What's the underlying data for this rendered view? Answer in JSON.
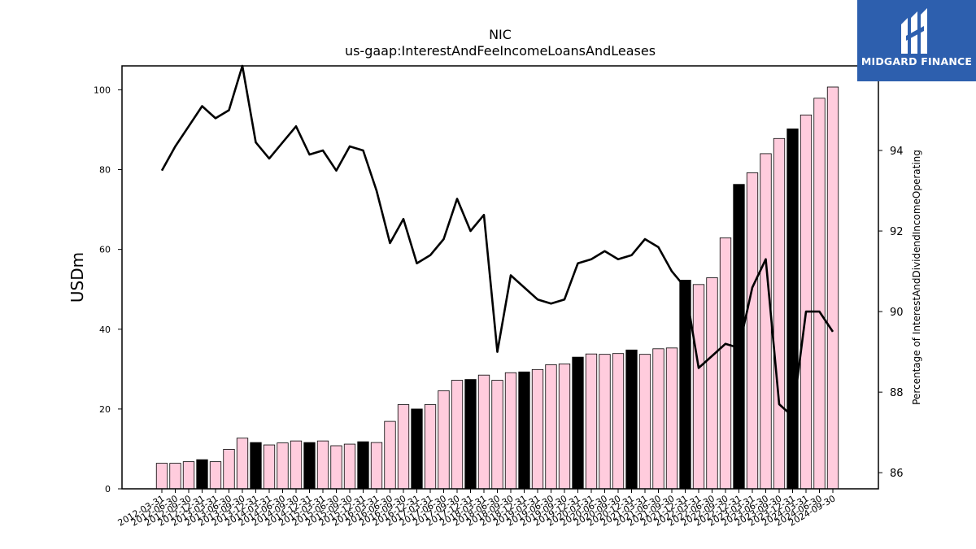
{
  "chart_data": {
    "type": "bar",
    "title": "NIC",
    "subtitle": "us-gaap:InterestAndFeeIncomeLoansAndLeases",
    "ylabel": "USDm",
    "y2label": "Percentage of InterestAndDividendIncomeOperating",
    "ylim": [
      0,
      106
    ],
    "y2lim": [
      85.6,
      96.1
    ],
    "yticks": [
      0,
      20,
      40,
      60,
      80,
      100
    ],
    "y2ticks": [
      86,
      88,
      90,
      92,
      94
    ],
    "categories": [
      "2012-03-31",
      "2012-06-30",
      "2012-09-30",
      "2012-12-31",
      "2013-03-31",
      "2013-06-30",
      "2013-09-30",
      "2013-12-31",
      "2014-03-31",
      "2014-06-30",
      "2014-09-30",
      "2014-12-31",
      "2015-03-31",
      "2015-06-30",
      "2015-09-30",
      "2015-12-31",
      "2016-03-31",
      "2016-06-30",
      "2016-09-30",
      "2016-12-31",
      "2017-03-31",
      "2017-06-30",
      "2017-09-30",
      "2017-12-31",
      "2018-03-31",
      "2018-06-30",
      "2018-09-30",
      "2018-12-31",
      "2019-03-31",
      "2019-06-30",
      "2019-09-30",
      "2019-12-31",
      "2020-03-31",
      "2020-06-30",
      "2020-09-30",
      "2020-12-31",
      "2021-03-31",
      "2021-06-30",
      "2021-09-30",
      "2021-12-31",
      "2022-03-31",
      "2022-06-30",
      "2022-09-30",
      "2022-12-31",
      "2023-03-31",
      "2023-06-30",
      "2023-09-30",
      "2023-12-31",
      "2024-03-31",
      "2024-06-30",
      "2024-09-30"
    ],
    "series": [
      {
        "values": [
          6.4,
          6.4,
          6.8,
          7.3,
          6.8,
          9.9,
          12.7,
          11.6,
          11.0,
          11.5,
          12.0,
          11.6,
          12.0,
          10.8,
          11.2,
          11.8,
          11.6,
          16.9,
          21.1,
          20.0,
          21.1,
          24.6,
          27.2,
          27.4,
          28.5,
          27.2,
          29.1,
          29.3,
          29.9,
          31.1,
          31.3,
          33.0,
          33.8,
          33.7,
          33.9,
          34.8,
          33.7,
          35.1,
          35.3,
          52.3,
          51.2,
          52.9,
          62.9,
          76.3,
          79.2,
          84.0,
          87.8,
          90.2,
          93.7,
          97.9,
          100.7
        ],
        "highlight": [
          false,
          false,
          false,
          true,
          false,
          false,
          false,
          true,
          false,
          false,
          false,
          true,
          false,
          false,
          false,
          true,
          false,
          false,
          false,
          true,
          false,
          false,
          false,
          true,
          false,
          false,
          false,
          true,
          false,
          false,
          false,
          true,
          false,
          false,
          false,
          true,
          false,
          false,
          false,
          true,
          false,
          false,
          false,
          true,
          false,
          false,
          false,
          true,
          false,
          false,
          false
        ]
      },
      {
        "axis": "right",
        "type": "line",
        "values": [
          93.5,
          94.1,
          94.6,
          95.1,
          94.8,
          95.0,
          96.1,
          94.2,
          93.8,
          94.2,
          94.6,
          93.9,
          94.0,
          93.5,
          94.1,
          94.0,
          93.0,
          91.7,
          92.3,
          91.2,
          91.4,
          91.8,
          92.8,
          92.0,
          92.4,
          89.0,
          90.9,
          90.6,
          90.3,
          90.2,
          90.3,
          91.2,
          91.3,
          91.5,
          91.3,
          91.4,
          91.8,
          91.6,
          91.0,
          90.6,
          88.6,
          88.9,
          89.2,
          89.1,
          90.6,
          91.3,
          87.7,
          87.4,
          90.0,
          90.0,
          89.5
        ]
      }
    ],
    "colors": {
      "bar": "#ffccdd",
      "bar_highlight": "#000000",
      "line": "#000000",
      "edge": "#000000"
    }
  },
  "logo": {
    "text": "MIDGARD FINANCE",
    "color": "#2d5fae"
  }
}
